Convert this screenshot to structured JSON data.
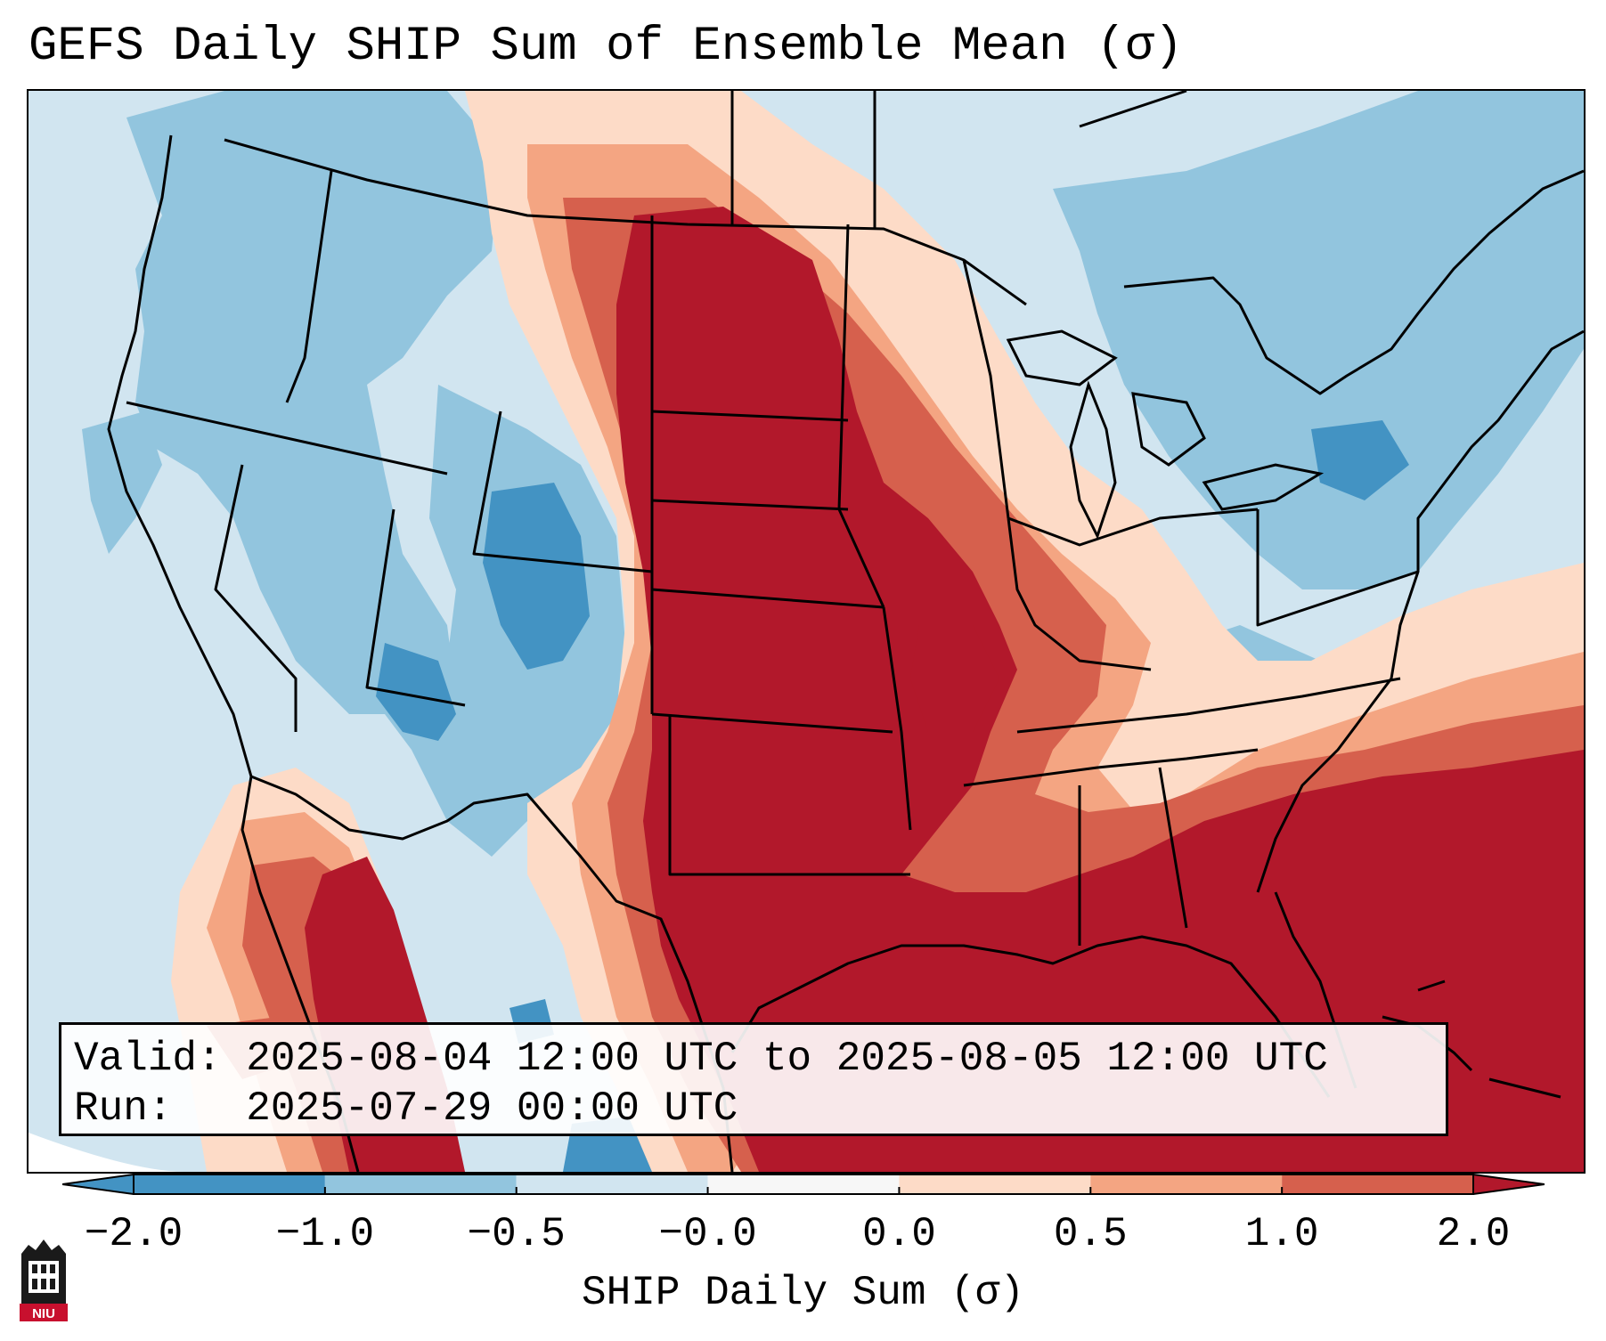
{
  "title": "GEFS Daily SHIP Sum of Ensemble Mean (σ)",
  "info": {
    "valid_label": "Valid:",
    "valid_value": "2025-08-04 12:00 UTC to 2025-08-05 12:00 UTC",
    "run_label": "Run:",
    "run_value": "2025-07-29 00:00 UTC"
  },
  "colorbar": {
    "label": "SHIP Daily Sum (σ)",
    "ticks": [
      "−2.0",
      "−1.0",
      "−0.5",
      "−0.0",
      "0.0",
      "0.5",
      "1.0",
      "2.0"
    ],
    "colors": [
      "#4393c3",
      "#92c5de",
      "#d1e5f0",
      "#f7f7f7",
      "#fddbc7",
      "#f4a582",
      "#d6604d",
      "#b2182b"
    ],
    "extend": "both"
  },
  "logo": {
    "text": "NIU",
    "colors": {
      "dark": "#1a1a1a",
      "red": "#c8102e"
    }
  },
  "map": {
    "projection": "lambert-conformal CONUS",
    "colors": {
      "below_-1": "#4393c3",
      "-1_-0.5": "#92c5de",
      "-0.5_0": "#d1e5f0",
      "0_0.5": "#fddbc7",
      "0.5_1": "#f4a582",
      "1_2": "#d6604d",
      "above_2": "#b2182b"
    }
  }
}
